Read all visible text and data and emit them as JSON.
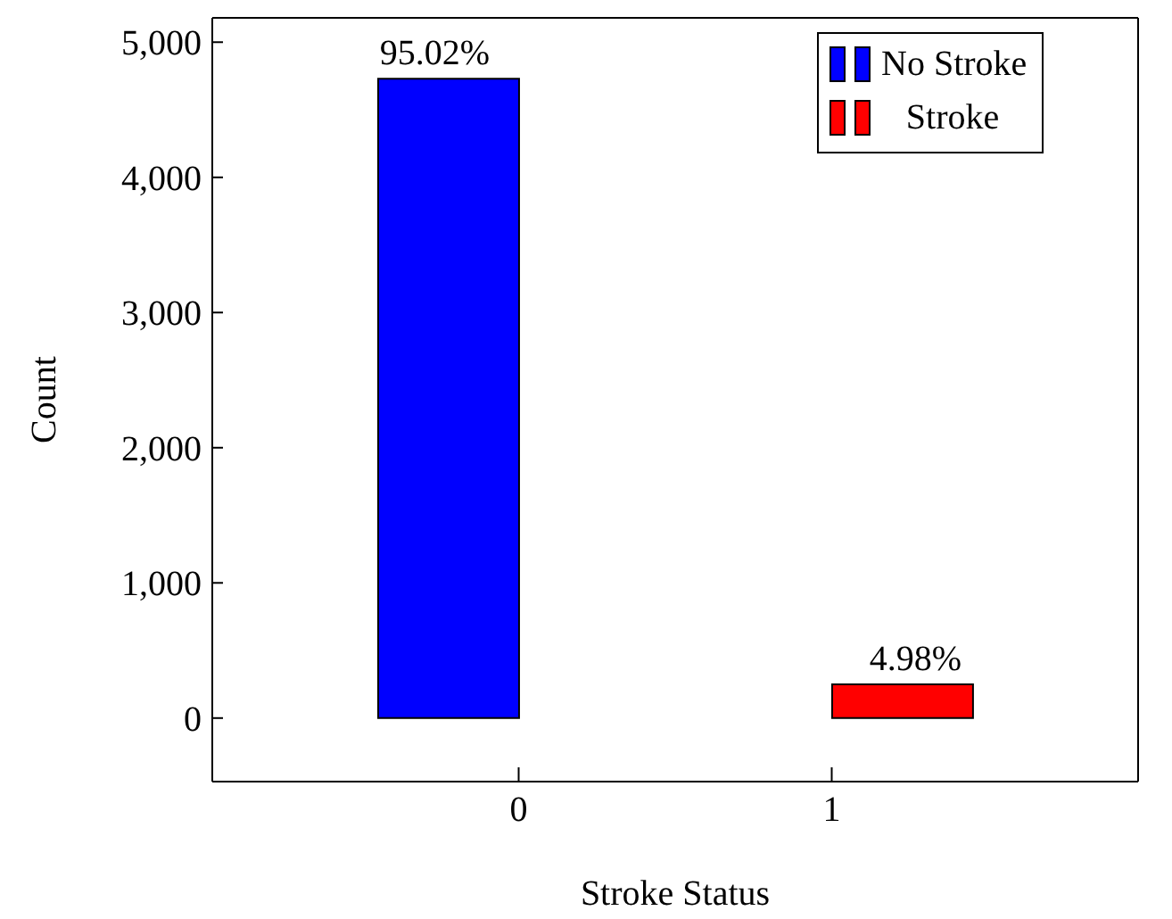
{
  "chart_data": {
    "type": "bar",
    "xlabel": "Stroke Status",
    "ylabel": "Count",
    "categories": [
      "0",
      "1"
    ],
    "series": [
      {
        "name": "No Stroke",
        "color": "#0000ff",
        "values": [
          4730,
          null
        ]
      },
      {
        "name": "Stroke",
        "color": "#ff0000",
        "values": [
          null,
          250
        ]
      }
    ],
    "annotations": [
      {
        "text": "95.02%",
        "x": "0",
        "y": 4730
      },
      {
        "text": "4.98%",
        "x": "1",
        "y": 250
      }
    ],
    "ylim": [
      -470,
      5180
    ],
    "yticks": [
      {
        "value": 0,
        "label": "0"
      },
      {
        "value": 1000,
        "label": "1,000"
      },
      {
        "value": 2000,
        "label": "2,000"
      },
      {
        "value": 3000,
        "label": "3,000"
      },
      {
        "value": 4000,
        "label": "4,000"
      },
      {
        "value": 5000,
        "label": "5,000"
      }
    ],
    "legend": "top right"
  }
}
